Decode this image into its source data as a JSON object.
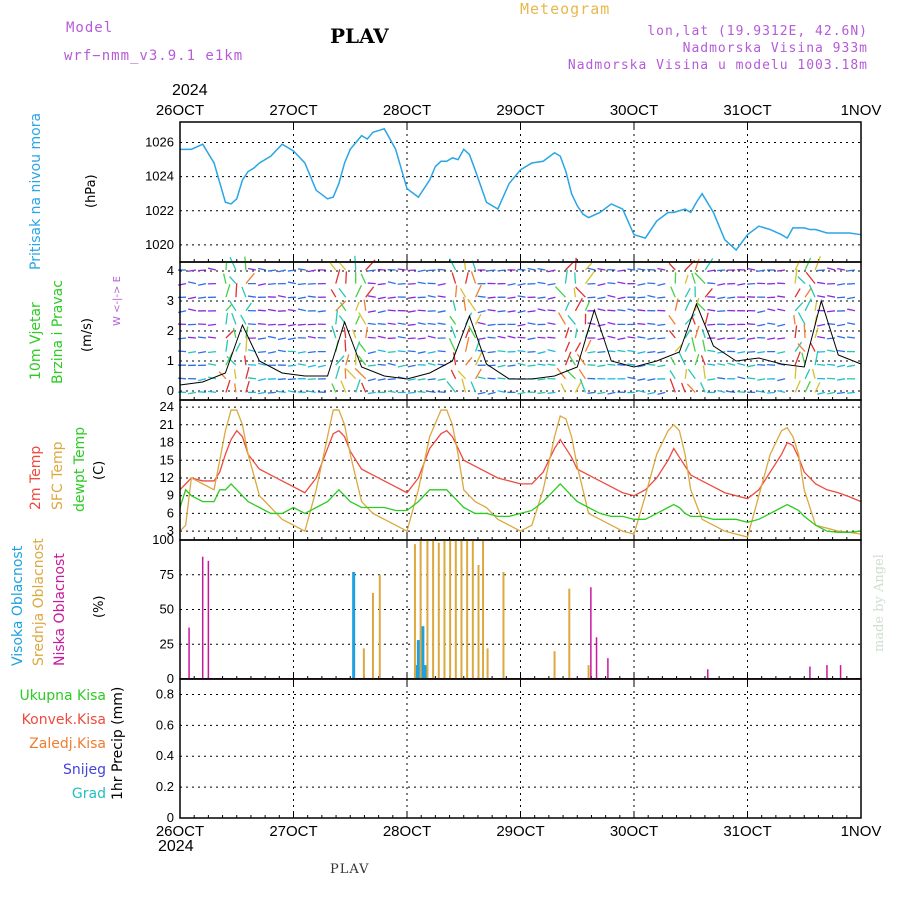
{
  "header": {
    "model_label": "Model",
    "model_name": "wrf−nmm_v3.9.1  e1km",
    "title": "PLAV",
    "meteogram_label": "Meteogram",
    "lonlat": "lon,lat (19.9312E, 42.6N)",
    "altitude": "Nadmorska Visina 933m",
    "model_altitude": "Nadmorska Visina u modelu 1003.18m",
    "year": "2024",
    "watermark": "made by Angel",
    "footer": "PLAV"
  },
  "colors": {
    "pressure": "#2aa5e6",
    "temp2m": "#ee4b3f",
    "sfc": "#dca840",
    "dewpt": "#2ccc22",
    "high_cloud": "#1ea0e0",
    "mid_cloud": "#dca840",
    "low_cloud": "#c8189c"
  },
  "x_axis": {
    "dates": [
      "26OCT",
      "27OCT",
      "28OCT",
      "29OCT",
      "30OCT",
      "31OCT",
      "1NOV"
    ],
    "year_bottom": "2024"
  },
  "panels": {
    "pressure": {
      "ylabel_1": "Pritisak na nivou mora",
      "unit": "(hPa)",
      "ticks": [
        "1020",
        "1022",
        "1024",
        "1026"
      ]
    },
    "wind": {
      "ylabel_1": "10m Vjetar",
      "ylabel_2": "Brzina i Pravac",
      "unit": "(m/s)",
      "ticks": [
        "0",
        "1",
        "2",
        "3",
        "4"
      ],
      "compass": "W  <-|->  E"
    },
    "temp": {
      "ylabel_1": "2m Temp",
      "ylabel_2": "SFC Temp",
      "ylabel_3": "dewpt Temp",
      "unit": "(C)",
      "ticks": [
        "3",
        "6",
        "9",
        "12",
        "15",
        "18",
        "21",
        "24"
      ]
    },
    "cloud": {
      "ylabel_1": "Visoka Oblacnost",
      "ylabel_2": "Srednja Oblacnost",
      "ylabel_3": "Niska Oblacnost",
      "unit": "(%)",
      "ticks": [
        "0",
        "25",
        "50",
        "75",
        "100"
      ]
    },
    "precip": {
      "ylabel": "1hr Precip (mm)",
      "ticks": [
        "0",
        "0.2",
        "0.4",
        "0.6",
        "0.8"
      ],
      "legend": [
        "Ukupna Kisa",
        "Konvek.Kisa",
        "Zaledj.Kisa",
        "Snijeg",
        "Grad"
      ],
      "legend_colors": [
        "#2ccc22",
        "#ee4b3f",
        "#f07c30",
        "#4444dd",
        "#20c0c0"
      ]
    }
  },
  "chart_data": [
    {
      "type": "line",
      "title": "",
      "ylabel": "Pritisak na nivou mora (hPa)",
      "ylim": [
        1019,
        1027.2
      ],
      "x": [
        0,
        0.1,
        0.2,
        0.3,
        0.4,
        0.45,
        0.5,
        0.55,
        0.6,
        0.65,
        0.7,
        0.8,
        0.9,
        1.0,
        1.1,
        1.2,
        1.3,
        1.35,
        1.4,
        1.45,
        1.5,
        1.55,
        1.6,
        1.65,
        1.7,
        1.8,
        1.9,
        2.0,
        2.1,
        2.2,
        2.25,
        2.3,
        2.35,
        2.4,
        2.45,
        2.5,
        2.55,
        2.6,
        2.7,
        2.8,
        2.9,
        3.0,
        3.1,
        3.2,
        3.3,
        3.35,
        3.4,
        3.45,
        3.5,
        3.55,
        3.6,
        3.7,
        3.8,
        3.9,
        4.0,
        4.1,
        4.2,
        4.3,
        4.35,
        4.4,
        4.45,
        4.5,
        4.55,
        4.6,
        4.7,
        4.8,
        4.9,
        5.0,
        5.1,
        5.2,
        5.3,
        5.35,
        5.4,
        5.45,
        5.5,
        5.55,
        5.6,
        5.7,
        5.8,
        5.9,
        6.0
      ],
      "series": [
        {
          "values": [
            1025.6,
            1025.6,
            1025.9,
            1024.8,
            1022.5,
            1022.4,
            1022.7,
            1023.8,
            1024.3,
            1024.5,
            1024.8,
            1025.2,
            1025.9,
            1025.5,
            1024.8,
            1023.2,
            1022.7,
            1022.8,
            1023.6,
            1024.8,
            1025.6,
            1026.0,
            1026.4,
            1026.2,
            1026.6,
            1026.8,
            1025.6,
            1023.3,
            1022.8,
            1023.8,
            1024.6,
            1024.9,
            1024.9,
            1025.1,
            1025.0,
            1025.6,
            1025.3,
            1024.4,
            1022.5,
            1022.1,
            1023.6,
            1024.4,
            1024.8,
            1024.9,
            1025.4,
            1025.2,
            1024.3,
            1023.0,
            1022.3,
            1021.8,
            1021.6,
            1021.9,
            1022.4,
            1022.1,
            1020.6,
            1020.4,
            1021.4,
            1021.9,
            1021.9,
            1022.0,
            1022.1,
            1021.9,
            1022.5,
            1023.0,
            1021.9,
            1020.3,
            1019.7,
            1020.6,
            1021.1,
            1020.9,
            1020.6,
            1020.4,
            1021.0,
            1021.0,
            1021.0,
            1020.9,
            1020.9,
            1020.7,
            1020.7,
            1020.7,
            1020.6
          ]
        }
      ]
    },
    {
      "type": "line",
      "title": "",
      "ylabel": "10m Vjetar Brzina i Pravac (m/s)",
      "ylim": [
        -0.3,
        4.3
      ],
      "x": [
        0,
        0.2,
        0.4,
        0.55,
        0.7,
        0.9,
        1.1,
        1.3,
        1.45,
        1.6,
        1.8,
        2.0,
        2.2,
        2.4,
        2.55,
        2.7,
        2.9,
        3.1,
        3.3,
        3.5,
        3.65,
        3.8,
        4.0,
        4.2,
        4.4,
        4.55,
        4.7,
        4.9,
        5.1,
        5.3,
        5.5,
        5.65,
        5.8,
        6.0
      ],
      "series": [
        {
          "values": [
            0.2,
            0.3,
            0.6,
            2.2,
            1.0,
            0.6,
            0.5,
            0.5,
            2.3,
            0.8,
            0.5,
            0.4,
            0.6,
            1.0,
            2.5,
            0.9,
            0.4,
            0.4,
            0.5,
            0.8,
            2.7,
            1.0,
            0.8,
            1.0,
            1.3,
            2.9,
            1.5,
            1.0,
            1.1,
            0.9,
            0.8,
            3.0,
            1.2,
            0.9
          ]
        }
      ]
    },
    {
      "type": "line",
      "title": "",
      "ylabel": "Temp (C)",
      "ylim": [
        1.5,
        25.2
      ],
      "x": [
        0,
        0.05,
        0.1,
        0.2,
        0.3,
        0.35,
        0.4,
        0.45,
        0.5,
        0.55,
        0.6,
        0.7,
        0.8,
        0.9,
        1.0,
        1.1,
        1.2,
        1.3,
        1.35,
        1.4,
        1.45,
        1.5,
        1.6,
        1.7,
        1.8,
        1.9,
        2.0,
        2.1,
        2.2,
        2.3,
        2.35,
        2.4,
        2.45,
        2.5,
        2.6,
        2.7,
        2.8,
        2.9,
        3.0,
        3.1,
        3.2,
        3.3,
        3.35,
        3.4,
        3.45,
        3.5,
        3.6,
        3.7,
        3.8,
        3.9,
        4.0,
        4.1,
        4.2,
        4.3,
        4.35,
        4.4,
        4.45,
        4.5,
        4.6,
        4.7,
        4.8,
        4.9,
        5.0,
        5.1,
        5.2,
        5.3,
        5.35,
        5.4,
        5.45,
        5.5,
        5.6,
        5.7,
        5.8,
        5.9,
        6.0
      ],
      "series": [
        {
          "name": "2m Temp",
          "values": [
            10,
            11,
            12,
            11.5,
            11.5,
            13,
            16,
            18.5,
            20,
            19,
            16,
            13.5,
            12.5,
            11.5,
            10.5,
            9.5,
            12,
            17,
            19.5,
            20,
            19,
            16.5,
            13.5,
            12.5,
            11.5,
            10.5,
            9.5,
            12,
            17,
            19.5,
            20,
            19,
            17,
            15,
            14,
            13,
            12,
            11.5,
            11,
            11,
            13,
            17,
            18.5,
            17,
            15.5,
            13.5,
            12.5,
            11.5,
            10.5,
            9.5,
            9,
            10,
            12,
            15,
            17,
            15.5,
            14,
            12.5,
            11.5,
            10.5,
            9.5,
            9,
            8.5,
            10,
            13,
            16,
            18,
            17.5,
            15.5,
            13,
            11,
            10,
            9.5,
            8.8,
            8
          ]
        },
        {
          "name": "SFC Temp",
          "values": [
            3,
            4,
            12,
            11,
            10,
            15,
            20,
            23.5,
            23.5,
            21,
            16,
            9,
            7,
            5,
            4,
            3,
            10,
            19,
            23.5,
            23.5,
            21,
            16,
            8,
            6,
            5,
            4,
            3,
            10,
            19,
            23.5,
            23.5,
            21,
            16,
            10,
            8,
            7,
            5,
            4,
            3,
            4,
            10,
            19,
            22.5,
            22,
            19,
            14,
            6,
            5,
            4,
            3,
            2.5,
            9,
            16,
            20,
            21,
            20,
            16,
            10,
            5,
            4,
            3,
            2.5,
            2,
            9,
            16,
            20,
            20.5,
            19,
            16,
            10,
            4,
            3.5,
            3,
            2.8,
            2.5
          ]
        },
        {
          "name": "dewpt Temp",
          "values": [
            7,
            10,
            9,
            8,
            8,
            10,
            10,
            11,
            10,
            9,
            8,
            7,
            6,
            6,
            7,
            6,
            7,
            8,
            9,
            10,
            9,
            8,
            7,
            7,
            7,
            6.5,
            6.5,
            8,
            10,
            10,
            10,
            9,
            8,
            7,
            6,
            6,
            5.5,
            5.5,
            6,
            6.5,
            8,
            10,
            11,
            10,
            9,
            8,
            7,
            6,
            5.5,
            5.5,
            5,
            5,
            6,
            7,
            7.5,
            7,
            6,
            5.5,
            5.5,
            5,
            5,
            5,
            4.5,
            5,
            6,
            7,
            7.5,
            7,
            6.5,
            5.5,
            4,
            3,
            2.8,
            2.8,
            3
          ]
        }
      ]
    },
    {
      "type": "bar",
      "title": "",
      "ylabel": "Oblacnost (%)",
      "ylim": [
        0,
        100
      ],
      "series": [
        {
          "name": "Visoka Oblacnost",
          "x": [
            1.53,
            2.08,
            2.1,
            2.12,
            2.14,
            2.16
          ],
          "values": [
            77,
            10,
            28,
            28,
            38,
            10
          ]
        },
        {
          "name": "Srednja Oblacnost",
          "x": [
            1.62,
            1.7,
            1.76,
            2.07,
            2.12,
            2.18,
            2.23,
            2.28,
            2.33,
            2.38,
            2.43,
            2.48,
            2.53,
            2.58,
            2.63,
            2.67,
            2.71,
            2.85,
            3.3,
            3.43,
            3.6
          ],
          "values": [
            22,
            62,
            75,
            97,
            100,
            100,
            100,
            98,
            100,
            100,
            100,
            100,
            100,
            100,
            82,
            100,
            22,
            77,
            20,
            65,
            10
          ]
        },
        {
          "name": "Niska Oblacnost",
          "x": [
            0.08,
            0.2,
            0.25,
            3.62,
            3.67,
            3.77,
            4.65,
            5.55,
            5.7,
            5.82
          ],
          "values": [
            37,
            88,
            85,
            66,
            30,
            15,
            7,
            9,
            10,
            10
          ]
        }
      ]
    },
    {
      "type": "line",
      "title": "",
      "ylabel": "1hr Precip (mm)",
      "ylim": [
        0,
        0.9
      ],
      "x": [
        0,
        6
      ],
      "series": [
        {
          "name": "Ukupna Kisa",
          "values": [
            0,
            0
          ]
        }
      ]
    }
  ]
}
